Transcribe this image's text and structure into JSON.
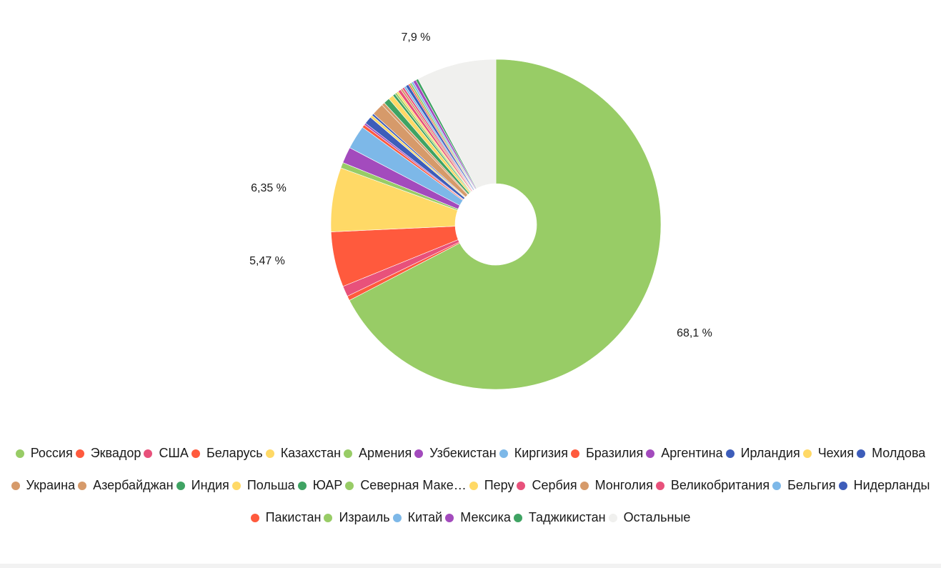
{
  "chart_data": {
    "type": "pie",
    "donut": true,
    "slices": [
      {
        "label": "Россия",
        "value": 68.1,
        "color": "#98cc66",
        "pct_label": "68,1 %"
      },
      {
        "label": "Эквадор",
        "value": 0.45,
        "color": "#ff5a3d"
      },
      {
        "label": "США",
        "value": 1.05,
        "color": "#e8517b"
      },
      {
        "label": "Беларусь",
        "value": 5.47,
        "color": "#ff5a3d",
        "pct_label": "5,47 %"
      },
      {
        "label": "Казахстан",
        "value": 6.35,
        "color": "#ffd966",
        "pct_label": "6,35 %"
      },
      {
        "label": "Армения",
        "value": 0.55,
        "color": "#98cc66"
      },
      {
        "label": "Узбекистан",
        "value": 1.6,
        "color": "#a34bbd"
      },
      {
        "label": "Киргизия",
        "value": 2.35,
        "color": "#7db8e8"
      },
      {
        "label": "Бразилия",
        "value": 0.3,
        "color": "#ff5a3d"
      },
      {
        "label": "Аргентина",
        "value": 0.2,
        "color": "#a34bbd"
      },
      {
        "label": "Ирландия",
        "value": 0.75,
        "color": "#3d5dba"
      },
      {
        "label": "Чехия",
        "value": 0.25,
        "color": "#ffd966"
      },
      {
        "label": "Молдова",
        "value": 0.2,
        "color": "#3d5dba"
      },
      {
        "label": "Украина",
        "value": 1.2,
        "color": "#d69a6a"
      },
      {
        "label": "Азербайджан",
        "value": 0.3,
        "color": "#d69a6a"
      },
      {
        "label": "Индия",
        "value": 0.6,
        "color": "#3fa363"
      },
      {
        "label": "Польша",
        "value": 0.5,
        "color": "#ffd966"
      },
      {
        "label": "ЮАР",
        "value": 0.25,
        "color": "#3fa363"
      },
      {
        "label": "Северная Македония",
        "value": 0.2,
        "color": "#98cc66"
      },
      {
        "label": "Перу",
        "value": 0.2,
        "color": "#ffd966"
      },
      {
        "label": "Сербия",
        "value": 0.3,
        "color": "#e8517b"
      },
      {
        "label": "Монголия",
        "value": 0.2,
        "color": "#d69a6a"
      },
      {
        "label": "Великобритания",
        "value": 0.2,
        "color": "#e8517b"
      },
      {
        "label": "Бельгия",
        "value": 0.2,
        "color": "#7db8e8"
      },
      {
        "label": "Нидерланды",
        "value": 0.3,
        "color": "#3d5dba"
      },
      {
        "label": "Пакистан",
        "value": 0.15,
        "color": "#ff5a3d"
      },
      {
        "label": "Израиль",
        "value": 0.2,
        "color": "#98cc66"
      },
      {
        "label": "Китай",
        "value": 0.2,
        "color": "#7db8e8"
      },
      {
        "label": "Мексика",
        "value": 0.3,
        "color": "#a34bbd"
      },
      {
        "label": "Таджикистан",
        "value": 0.25,
        "color": "#3fa363"
      },
      {
        "label": "Остальные",
        "value": 7.9,
        "color": "#f0f0ee",
        "pct_label": "7,9 %"
      }
    ],
    "legend_placement": "bottom"
  },
  "legend": {
    "items": [
      {
        "label": "Россия",
        "color": "#98cc66"
      },
      {
        "label": "Эквадор",
        "color": "#ff5a3d"
      },
      {
        "label": "США",
        "color": "#e8517b"
      },
      {
        "label": "Беларусь",
        "color": "#ff5a3d"
      },
      {
        "label": "Казахстан",
        "color": "#ffd966"
      },
      {
        "label": "Армения",
        "color": "#98cc66"
      },
      {
        "label": "Узбекистан",
        "color": "#a34bbd"
      },
      {
        "label": "Киргизия",
        "color": "#7db8e8"
      },
      {
        "label": "Бразилия",
        "color": "#ff5a3d"
      },
      {
        "label": "Аргентина",
        "color": "#a34bbd"
      },
      {
        "label": "Ирландия",
        "color": "#3d5dba"
      },
      {
        "label": "Чехия",
        "color": "#ffd966"
      },
      {
        "label": "Молдова",
        "color": "#3d5dba"
      },
      {
        "label": "Украина",
        "color": "#d69a6a"
      },
      {
        "label": "Азербайджан",
        "color": "#d69a6a"
      },
      {
        "label": "Индия",
        "color": "#3fa363"
      },
      {
        "label": "Польша",
        "color": "#ffd966"
      },
      {
        "label": "ЮАР",
        "color": "#3fa363"
      },
      {
        "label": "Северная Маке…",
        "color": "#98cc66"
      },
      {
        "label": "Перу",
        "color": "#ffd966"
      },
      {
        "label": "Сербия",
        "color": "#e8517b"
      },
      {
        "label": "Монголия",
        "color": "#d69a6a"
      },
      {
        "label": "Великобритания",
        "color": "#e8517b"
      },
      {
        "label": "Бельгия",
        "color": "#7db8e8"
      },
      {
        "label": "Нидерланды",
        "color": "#3d5dba"
      },
      {
        "label": "Пакистан",
        "color": "#ff5a3d"
      },
      {
        "label": "Израиль",
        "color": "#98cc66"
      },
      {
        "label": "Китай",
        "color": "#7db8e8"
      },
      {
        "label": "Мексика",
        "color": "#a34bbd"
      },
      {
        "label": "Таджикистан",
        "color": "#3fa363"
      },
      {
        "label": "Остальные",
        "color": "#f0f0ee"
      }
    ]
  }
}
